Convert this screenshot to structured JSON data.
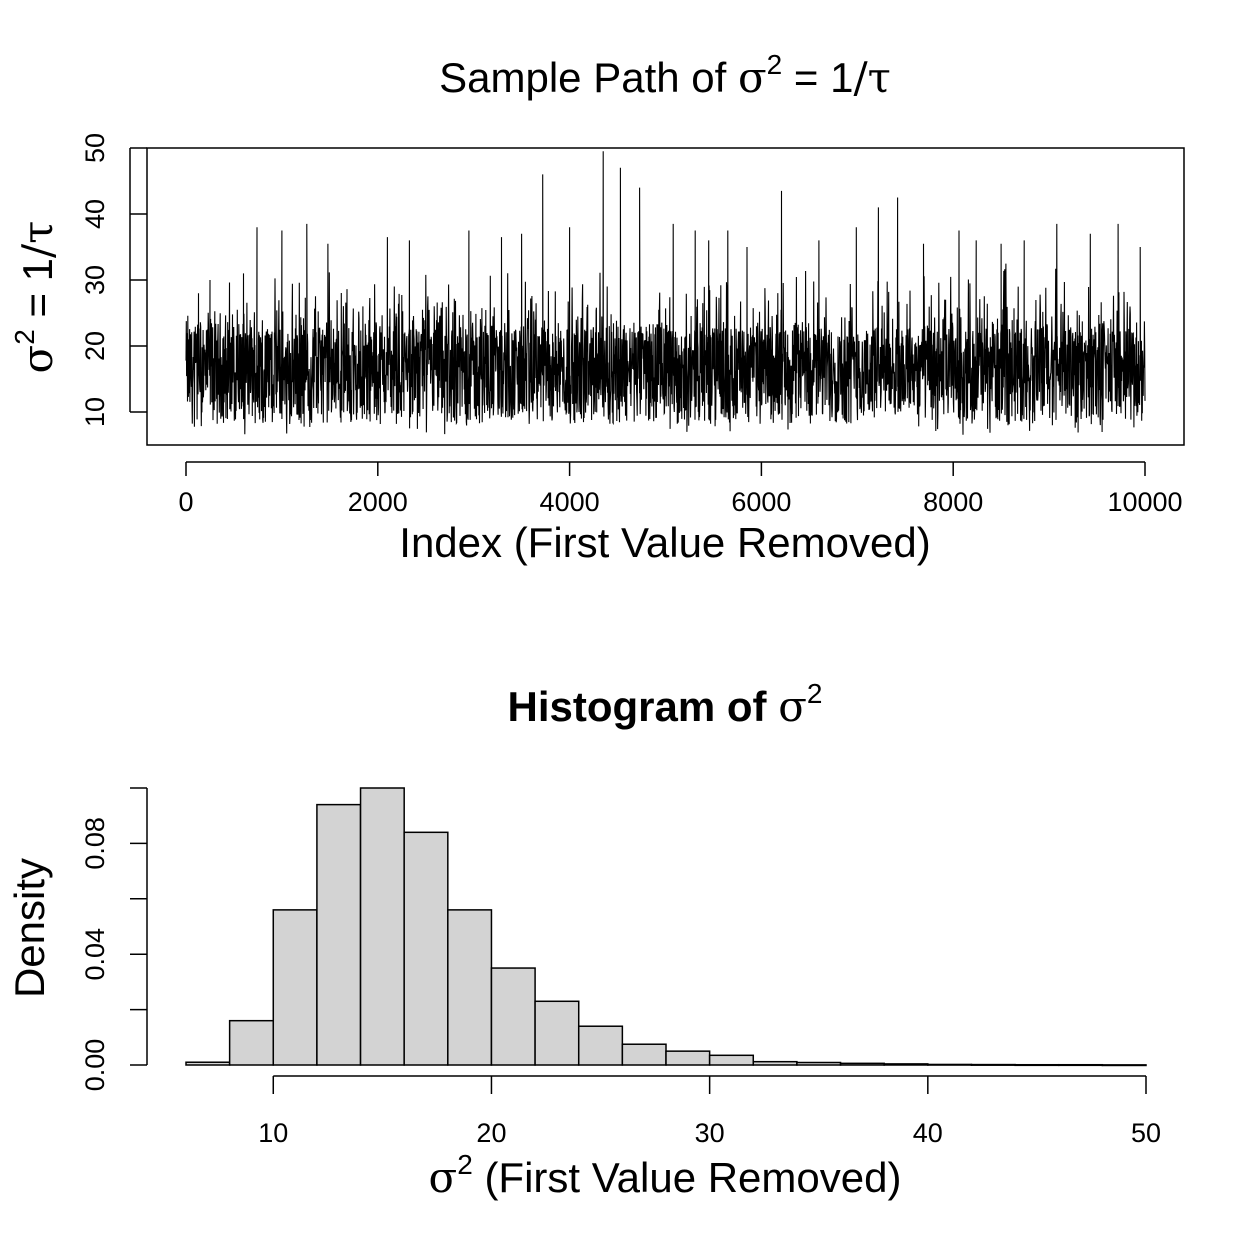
{
  "chart_data": [
    {
      "type": "line",
      "title_prefix": "Sample Path of ",
      "title_symbol": "σ",
      "title_sup": "2",
      "title_rest": " = 1",
      "title_slash": "/",
      "title_tau": "τ",
      "xlabel": "Index (First Value Removed)",
      "ylabel_symbol": "σ",
      "ylabel_sup": "2",
      "ylabel_rest": " = 1",
      "ylabel_slash": "/",
      "ylabel_tau": "τ",
      "xlim": [
        0,
        10000
      ],
      "ylim": [
        5,
        50
      ],
      "xticks": [
        "0",
        "2000",
        "4000",
        "6000",
        "8000",
        "10000"
      ],
      "yticks": [
        "10",
        "20",
        "30",
        "40",
        "50"
      ],
      "n": 10000,
      "series_summary": {
        "center": 15.5,
        "typical_low": 10,
        "typical_high": 24,
        "min": 6.5,
        "max": 49.5
      },
      "spikes": [
        {
          "x": 130,
          "y": 28
        },
        {
          "x": 250,
          "y": 30
        },
        {
          "x": 600,
          "y": 31
        },
        {
          "x": 740,
          "y": 38
        },
        {
          "x": 1000,
          "y": 37.5
        },
        {
          "x": 1260,
          "y": 38.5
        },
        {
          "x": 1480,
          "y": 35.5
        },
        {
          "x": 2100,
          "y": 36.5
        },
        {
          "x": 2330,
          "y": 36
        },
        {
          "x": 2950,
          "y": 37.5
        },
        {
          "x": 3290,
          "y": 36.5
        },
        {
          "x": 3500,
          "y": 37
        },
        {
          "x": 3720,
          "y": 46
        },
        {
          "x": 4000,
          "y": 38
        },
        {
          "x": 4350,
          "y": 49.5
        },
        {
          "x": 4530,
          "y": 47
        },
        {
          "x": 4730,
          "y": 44
        },
        {
          "x": 5080,
          "y": 38.5
        },
        {
          "x": 5310,
          "y": 37.5
        },
        {
          "x": 5450,
          "y": 36
        },
        {
          "x": 5650,
          "y": 37.5
        },
        {
          "x": 5850,
          "y": 35
        },
        {
          "x": 6210,
          "y": 43.5
        },
        {
          "x": 6600,
          "y": 36
        },
        {
          "x": 6990,
          "y": 38
        },
        {
          "x": 7220,
          "y": 41
        },
        {
          "x": 7420,
          "y": 42.5
        },
        {
          "x": 7690,
          "y": 35.5
        },
        {
          "x": 8060,
          "y": 37.5
        },
        {
          "x": 8240,
          "y": 36
        },
        {
          "x": 8500,
          "y": 35.5
        },
        {
          "x": 8740,
          "y": 36
        },
        {
          "x": 9080,
          "y": 38.5
        },
        {
          "x": 9430,
          "y": 37
        },
        {
          "x": 9720,
          "y": 38.5
        },
        {
          "x": 9950,
          "y": 35
        }
      ]
    },
    {
      "type": "bar",
      "title": "Histogram of ",
      "title_symbol": "σ",
      "title_sup": "2",
      "xlabel_symbol": "σ",
      "xlabel_sup": "2",
      "xlabel_rest": " (First Value Removed)",
      "ylabel": "Density",
      "xlim": [
        6,
        50
      ],
      "ylim": [
        0,
        0.1
      ],
      "xticks": [
        "10",
        "20",
        "30",
        "40",
        "50"
      ],
      "yticks": [
        "0.00",
        "0.04",
        "0.08"
      ],
      "bin_width": 2,
      "bin_edges": [
        6,
        8,
        10,
        12,
        14,
        16,
        18,
        20,
        22,
        24,
        26,
        28,
        30,
        32,
        34,
        36,
        38,
        40,
        42,
        44,
        46,
        48,
        50
      ],
      "values": [
        0.001,
        0.016,
        0.056,
        0.094,
        0.1,
        0.084,
        0.056,
        0.035,
        0.023,
        0.014,
        0.0075,
        0.005,
        0.0035,
        0.0012,
        0.0009,
        0.0006,
        0.0004,
        0.0002,
        0.00015,
        0.0001,
        0.0001,
        5e-05
      ],
      "bar_color": "#d3d3d3"
    }
  ]
}
